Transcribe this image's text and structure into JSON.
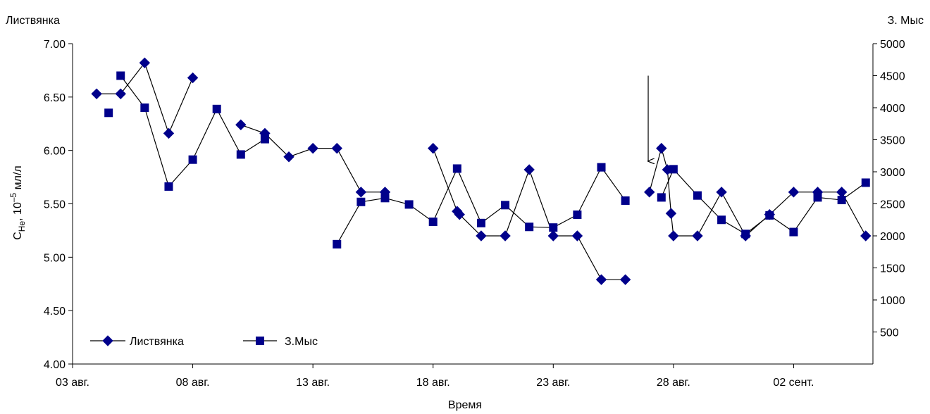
{
  "chart_data": {
    "type": "line",
    "left_axis_title": "Листвянка",
    "right_axis_title": "З. Мыс",
    "ylabel": {
      "base": "C",
      "sub": "He",
      "sep": ", 10",
      "sup": "–5",
      "unit": " мл/л"
    },
    "xlabel": "Время",
    "x_tick_labels": [
      "03 авг.",
      "08 авг.",
      "13 авг.",
      "18 авг.",
      "23 авг.",
      "28 авг.",
      "02 сент."
    ],
    "x_tick_days": [
      0,
      5,
      10,
      15,
      20,
      25,
      30
    ],
    "xlim": [
      0,
      33.3
    ],
    "y_left_ticks": [
      "4.00",
      "4.50",
      "5.00",
      "5.50",
      "6.00",
      "6.50",
      "7.00"
    ],
    "y_left_lim": [
      4.0,
      7.0
    ],
    "y_right_ticks": [
      "500",
      "1000",
      "1500",
      "2000",
      "2500",
      "3000",
      "3500",
      "4000",
      "4500",
      "5000"
    ],
    "y_right_lim": [
      0,
      5000
    ],
    "grid": false,
    "legend_placement": "bottom-left",
    "series": [
      {
        "name": "Листвянка",
        "axis": "left",
        "marker": "diamond",
        "color": "#00008B",
        "segments": [
          [
            [
              1,
              6.53
            ],
            [
              2,
              6.53
            ],
            [
              3,
              6.82
            ],
            [
              4,
              6.16
            ],
            [
              5,
              6.68
            ]
          ],
          [
            [
              7,
              6.24
            ],
            [
              8,
              6.16
            ],
            [
              9,
              5.94
            ],
            [
              10,
              6.02
            ],
            [
              11,
              6.02
            ],
            [
              12,
              5.61
            ],
            [
              13,
              5.61
            ]
          ],
          [
            [
              15,
              6.02
            ],
            [
              16,
              5.43
            ],
            [
              16.1,
              5.4
            ],
            [
              17,
              5.2
            ],
            [
              18,
              5.2
            ],
            [
              19,
              5.82
            ],
            [
              20,
              5.2
            ],
            [
              21,
              5.2
            ],
            [
              22,
              4.79
            ],
            [
              23,
              4.79
            ]
          ],
          [
            [
              24,
              5.61
            ],
            [
              24.5,
              6.02
            ],
            [
              24.75,
              5.82
            ],
            [
              24.9,
              5.41
            ],
            [
              25,
              5.2
            ],
            [
              26,
              5.2
            ],
            [
              27,
              5.61
            ],
            [
              28,
              5.2
            ],
            [
              29,
              5.4
            ],
            [
              30,
              5.61
            ],
            [
              31,
              5.61
            ],
            [
              32,
              5.61
            ],
            [
              33,
              5.2
            ]
          ]
        ]
      },
      {
        "name": "З.Мыс",
        "axis": "right",
        "marker": "square",
        "color": "#00008B",
        "segments": [
          [
            [
              1.5,
              3920
            ]
          ],
          [
            [
              2,
              4500
            ],
            [
              3,
              4000
            ],
            [
              4,
              2770
            ],
            [
              5,
              3190
            ],
            [
              6,
              3980
            ],
            [
              7,
              3270
            ],
            [
              8,
              3510
            ]
          ],
          [
            [
              11,
              1870
            ],
            [
              12,
              2530
            ],
            [
              13,
              2590
            ],
            [
              14,
              2490
            ],
            [
              15,
              2220
            ],
            [
              16,
              3050
            ],
            [
              17,
              2200
            ],
            [
              18,
              2480
            ],
            [
              19,
              2140
            ],
            [
              20,
              2130
            ],
            [
              21,
              2330
            ],
            [
              22,
              3070
            ],
            [
              23,
              2550
            ]
          ],
          [
            [
              24.5,
              2600
            ],
            [
              25,
              3040
            ],
            [
              26,
              2630
            ],
            [
              27,
              2250
            ],
            [
              28,
              2030
            ],
            [
              29,
              2320
            ],
            [
              30,
              2060
            ],
            [
              31,
              2600
            ],
            [
              32,
              2560
            ],
            [
              33,
              2830
            ]
          ]
        ]
      }
    ],
    "annotation": {
      "type": "arrow",
      "x": 23.95,
      "y_from": 6.7,
      "y_to": 5.9,
      "axis": "left"
    }
  }
}
